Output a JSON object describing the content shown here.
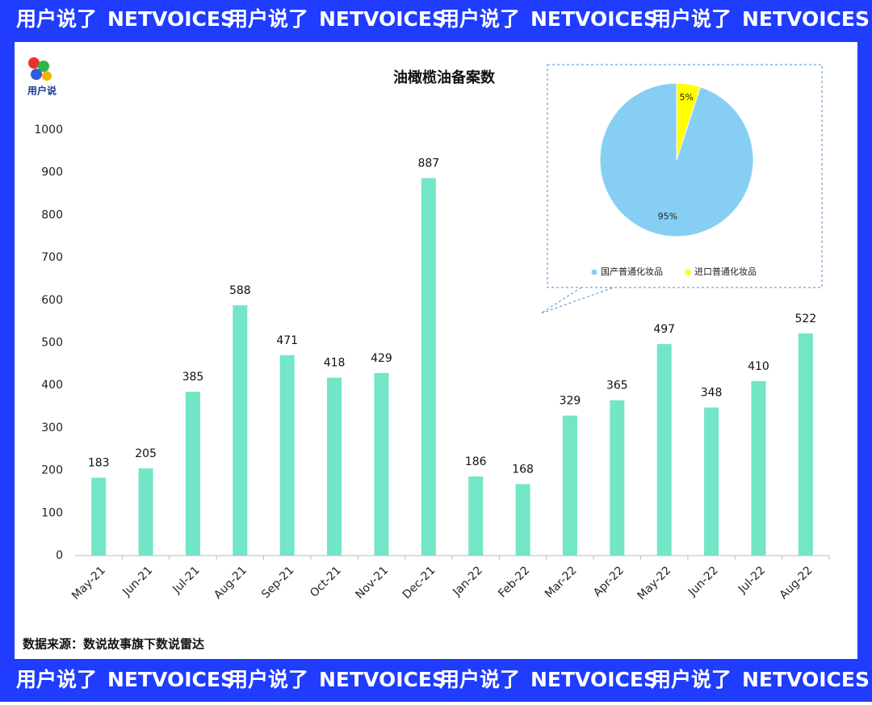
{
  "banner_top": [
    "用户说了",
    "NETVOICES",
    "用户说了",
    "NETVOICES",
    "用户说了",
    "NETVOICES",
    "用户说了",
    "NETVOICES"
  ],
  "banner_bottom": [
    "用户说了",
    "NETVOICES",
    "用户说了",
    "NETVOICES",
    "用户说了",
    "NETVOICES",
    "用户说了",
    "NETVOICES"
  ],
  "logo": "用户说",
  "source": "数据来源：数说故事旗下数说雷达",
  "chart_data": [
    {
      "type": "bar",
      "title": "油橄榄油备案数",
      "categories": [
        "May-21",
        "Jun-21",
        "Jul-21",
        "Aug-21",
        "Sep-21",
        "Oct-21",
        "Nov-21",
        "Dec-21",
        "Jan-22",
        "Feb-22",
        "Mar-22",
        "Apr-22",
        "May-22",
        "Jun-22",
        "Jul-22",
        "Aug-22"
      ],
      "values": [
        183,
        205,
        385,
        588,
        471,
        418,
        429,
        887,
        186,
        168,
        329,
        365,
        497,
        348,
        410,
        522
      ],
      "color": "#72e6c7",
      "ylim": [
        0,
        1000
      ],
      "yticks": [
        0,
        100,
        200,
        300,
        400,
        500,
        600,
        700,
        800,
        900,
        1000
      ],
      "grid": false
    },
    {
      "type": "pie",
      "categories": [
        "国产普通化妆品",
        "进口普通化妆品"
      ],
      "values": [
        95,
        5
      ],
      "value_labels": [
        "95%",
        "5%"
      ],
      "colors": [
        "#87cef5",
        "#ffff00"
      ]
    }
  ]
}
